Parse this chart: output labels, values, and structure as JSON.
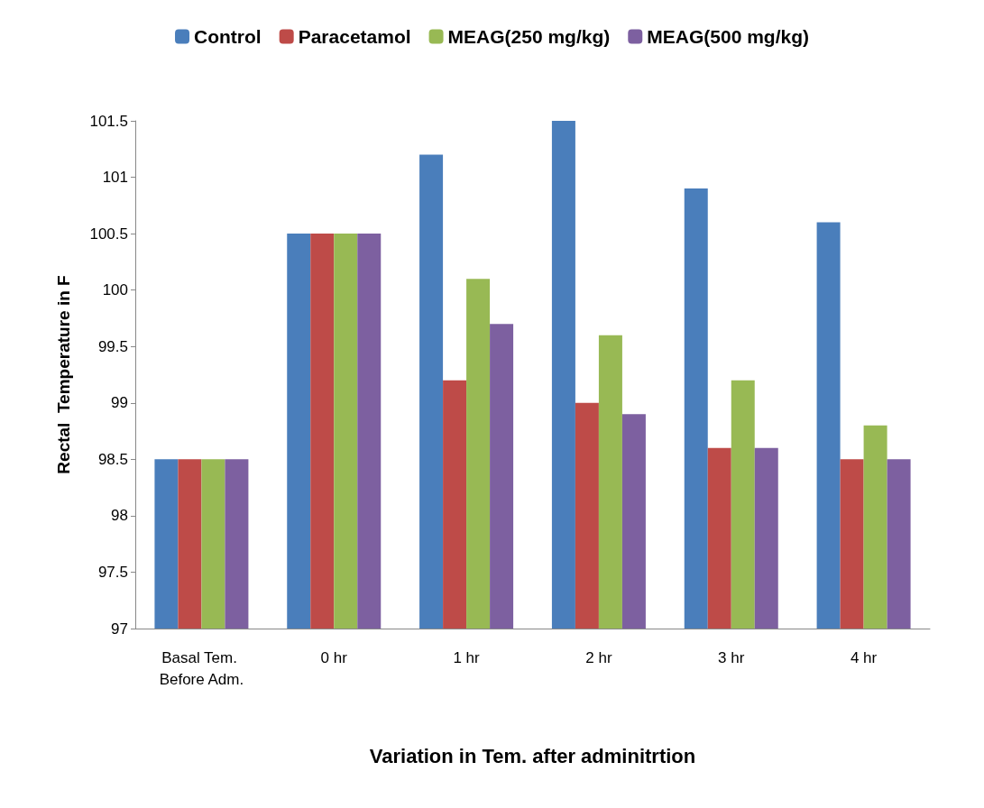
{
  "chart_data": {
    "type": "bar",
    "xlabel": "Variation in Tem. after adminitrtion",
    "ylabel": "Rectal  Temperature in F",
    "categories": [
      "Basal Tem. Before Adm.",
      "0 hr",
      "1 hr",
      "2 hr",
      "3 hr",
      "4 hr"
    ],
    "series": [
      {
        "name": "Control",
        "color": "#4a7ebb",
        "values": [
          98.5,
          100.5,
          101.2,
          101.5,
          100.9,
          100.6
        ]
      },
      {
        "name": "Paracetamol",
        "color": "#be4b48",
        "values": [
          98.5,
          100.5,
          99.2,
          99.0,
          98.6,
          98.5
        ]
      },
      {
        "name": "MEAG(250 mg/kg)",
        "color": "#98b954",
        "values": [
          98.5,
          100.5,
          100.1,
          99.6,
          99.2,
          98.8
        ]
      },
      {
        "name": "MEAG(500 mg/kg)",
        "color": "#7d60a0",
        "values": [
          98.5,
          100.5,
          99.7,
          98.9,
          98.6,
          98.5
        ]
      }
    ],
    "ylim": [
      97,
      101.5
    ],
    "yticks": [
      97,
      97.5,
      98,
      98.5,
      99,
      99.5,
      100,
      100.5,
      101,
      101.5
    ],
    "grid": false,
    "legend": "top"
  }
}
